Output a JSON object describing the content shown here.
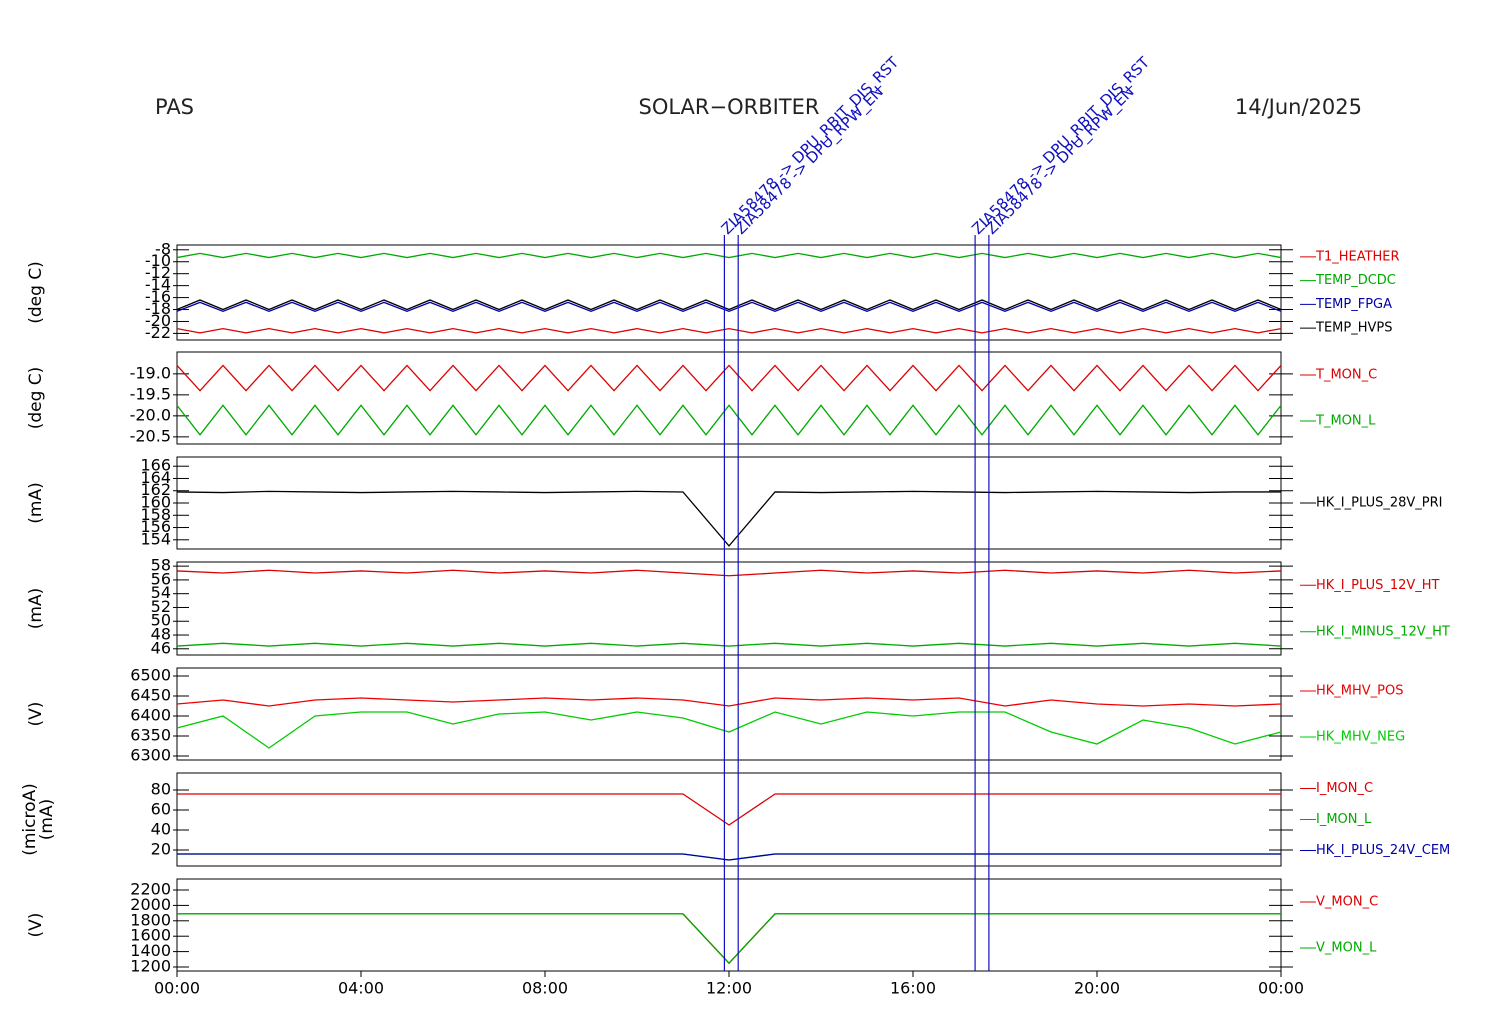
{
  "header": {
    "left": "PAS",
    "center": "SOLAR−ORBITER",
    "right": "14/Jun/2025"
  },
  "events": [
    {
      "x": 11.9,
      "label": "ZIA58478 -> DPU_RBIT_DIS_RST"
    },
    {
      "x": 12.2,
      "label": "ZIA58478 -> DPU_RPW_EN"
    },
    {
      "x": 17.35,
      "label": "ZIA58478 -> DPU_RBIT_DIS_RST"
    },
    {
      "x": 17.65,
      "label": "ZIA58478 -> DPU_RPW_EN"
    }
  ],
  "chart_data": [
    {
      "type": "line",
      "ylabel": "(deg C)",
      "xlim": [
        0,
        24
      ],
      "ylim": [
        -23.1,
        -7.2
      ],
      "yticks": [
        -8,
        -10,
        -12,
        -14,
        -16,
        -18,
        -20,
        -22
      ],
      "x": [
        0,
        0.5,
        1,
        1.5,
        2,
        2.5,
        3,
        3.5,
        4,
        4.5,
        5,
        5.5,
        6,
        6.5,
        7,
        7.5,
        8,
        8.5,
        9,
        9.5,
        10,
        10.5,
        11,
        11.5,
        12,
        12.5,
        13,
        13.5,
        14,
        14.5,
        15,
        15.5,
        16,
        16.5,
        17,
        17.5,
        18,
        18.5,
        19,
        19.5,
        20,
        20.5,
        21,
        21.5,
        22,
        22.5,
        23,
        23.5,
        24
      ],
      "series": [
        {
          "name": "T1_HEATHER",
          "color": "#dd0000",
          "values": [
            -21.2,
            -21.9,
            -21.2,
            -21.9,
            -21.2,
            -21.9,
            -21.2,
            -21.9,
            -21.2,
            -21.9,
            -21.2,
            -21.9,
            -21.2,
            -21.9,
            -21.2,
            -21.9,
            -21.2,
            -21.9,
            -21.2,
            -21.9,
            -21.2,
            -21.9,
            -21.2,
            -21.9,
            -21.2,
            -21.9,
            -21.2,
            -21.9,
            -21.2,
            -21.9,
            -21.2,
            -21.9,
            -21.2,
            -21.9,
            -21.2,
            -21.9,
            -21.2,
            -21.9,
            -21.2,
            -21.9,
            -21.2,
            -21.9,
            -21.2,
            -21.9,
            -21.2,
            -21.9,
            -21.2,
            -21.9,
            -21.2
          ]
        },
        {
          "name": "TEMP_DCDC",
          "color": "#00aa00",
          "values": [
            -9.3,
            -8.6,
            -9.3,
            -8.6,
            -9.3,
            -8.6,
            -9.3,
            -8.6,
            -9.3,
            -8.6,
            -9.3,
            -8.6,
            -9.3,
            -8.6,
            -9.3,
            -8.6,
            -9.3,
            -8.6,
            -9.3,
            -8.6,
            -9.3,
            -8.6,
            -9.3,
            -8.6,
            -9.3,
            -8.6,
            -9.3,
            -8.6,
            -9.3,
            -8.6,
            -9.3,
            -8.6,
            -9.3,
            -8.6,
            -9.3,
            -8.6,
            -9.3,
            -8.6,
            -9.3,
            -8.6,
            -9.3,
            -8.6,
            -9.3,
            -8.6,
            -9.3,
            -8.6,
            -9.3,
            -8.6,
            -9.3
          ]
        },
        {
          "name": "TEMP_FPGA",
          "color": "#0000aa",
          "values": [
            -18.3,
            -16.8,
            -18.3,
            -16.8,
            -18.3,
            -16.8,
            -18.3,
            -16.8,
            -18.3,
            -16.8,
            -18.3,
            -16.8,
            -18.3,
            -16.8,
            -18.3,
            -16.8,
            -18.3,
            -16.8,
            -18.3,
            -16.8,
            -18.3,
            -16.8,
            -18.3,
            -16.8,
            -18.3,
            -16.8,
            -18.3,
            -16.8,
            -18.3,
            -16.8,
            -18.3,
            -16.8,
            -18.3,
            -16.8,
            -18.3,
            -16.8,
            -18.3,
            -16.8,
            -18.3,
            -16.8,
            -18.3,
            -16.8,
            -18.3,
            -16.8,
            -18.3,
            -16.8,
            -18.3,
            -16.8,
            -18.3
          ]
        },
        {
          "name": "TEMP_HVPS",
          "color": "#000000",
          "values": [
            -18.0,
            -16.4,
            -18.0,
            -16.4,
            -18.0,
            -16.4,
            -18.0,
            -16.4,
            -18.0,
            -16.4,
            -18.0,
            -16.4,
            -18.0,
            -16.4,
            -18.0,
            -16.4,
            -18.0,
            -16.4,
            -18.0,
            -16.4,
            -18.0,
            -16.4,
            -18.0,
            -16.4,
            -18.0,
            -16.4,
            -18.0,
            -16.4,
            -18.0,
            -16.4,
            -18.0,
            -16.4,
            -18.0,
            -16.4,
            -18.0,
            -16.4,
            -18.0,
            -16.4,
            -18.0,
            -16.4,
            -18.0,
            -16.4,
            -18.0,
            -16.4,
            -18.0,
            -16.4,
            -18.0,
            -16.4,
            -18.0
          ]
        }
      ]
    },
    {
      "type": "line",
      "ylabel": "(deg C)",
      "xlim": [
        0,
        24
      ],
      "ylim": [
        -20.67,
        -18.48
      ],
      "yticks": [
        {
          "value": -19.0,
          "label": "-19.0"
        },
        {
          "value": -19.5,
          "label": "-19.5"
        },
        {
          "value": -20.0,
          "label": "-20.0"
        },
        {
          "value": -20.5,
          "label": "-20.5"
        }
      ],
      "x": [
        0,
        0.5,
        1,
        1.5,
        2,
        2.5,
        3,
        3.5,
        4,
        4.5,
        5,
        5.5,
        6,
        6.5,
        7,
        7.5,
        8,
        8.5,
        9,
        9.5,
        10,
        10.5,
        11,
        11.5,
        12,
        12.5,
        13,
        13.5,
        14,
        14.5,
        15,
        15.5,
        16,
        16.5,
        17,
        17.5,
        18,
        18.5,
        19,
        19.5,
        20,
        20.5,
        21,
        21.5,
        22,
        22.5,
        23,
        23.5,
        24
      ],
      "series": [
        {
          "name": "T_MON_C",
          "color": "#dd0000",
          "values": [
            -18.8,
            -19.4,
            -18.8,
            -19.4,
            -18.8,
            -19.4,
            -18.8,
            -19.4,
            -18.8,
            -19.4,
            -18.8,
            -19.4,
            -18.8,
            -19.4,
            -18.8,
            -19.4,
            -18.8,
            -19.4,
            -18.8,
            -19.4,
            -18.8,
            -19.4,
            -18.8,
            -19.4,
            -18.8,
            -19.4,
            -18.8,
            -19.4,
            -18.8,
            -19.4,
            -18.8,
            -19.4,
            -18.8,
            -19.4,
            -18.8,
            -19.4,
            -18.8,
            -19.4,
            -18.8,
            -19.4,
            -18.8,
            -19.4,
            -18.8,
            -19.4,
            -18.8,
            -19.4,
            -18.8,
            -19.4,
            -18.8
          ]
        },
        {
          "name": "T_MON_L",
          "color": "#00aa00",
          "values": [
            -19.75,
            -20.45,
            -19.75,
            -20.45,
            -19.75,
            -20.45,
            -19.75,
            -20.45,
            -19.75,
            -20.45,
            -19.75,
            -20.45,
            -19.75,
            -20.45,
            -19.75,
            -20.45,
            -19.75,
            -20.45,
            -19.75,
            -20.45,
            -19.75,
            -20.45,
            -19.75,
            -20.45,
            -19.75,
            -20.45,
            -19.75,
            -20.45,
            -19.75,
            -20.45,
            -19.75,
            -20.45,
            -19.75,
            -20.45,
            -19.75,
            -20.45,
            -19.75,
            -20.45,
            -19.75,
            -20.45,
            -19.75,
            -20.45,
            -19.75,
            -20.45,
            -19.75,
            -20.45,
            -19.75,
            -20.45,
            -19.75
          ]
        }
      ]
    },
    {
      "type": "line",
      "ylabel": "(mA)",
      "xlim": [
        0,
        24
      ],
      "ylim": [
        152.5,
        167.5
      ],
      "yticks": [
        166,
        164,
        162,
        160,
        158,
        156,
        154
      ],
      "x": [
        0,
        1,
        2,
        3,
        4,
        5,
        6,
        7,
        8,
        9,
        10,
        11,
        12,
        13,
        14,
        15,
        16,
        17,
        18,
        19,
        20,
        21,
        22,
        23,
        24
      ],
      "series": [
        {
          "name": "HK_I_PLUS_28V_PRI",
          "color": "#000000",
          "values": [
            161.8,
            161.7,
            161.9,
            161.8,
            161.7,
            161.8,
            161.9,
            161.8,
            161.7,
            161.8,
            161.9,
            161.8,
            153.0,
            161.8,
            161.7,
            161.8,
            161.9,
            161.8,
            161.7,
            161.8,
            161.9,
            161.8,
            161.7,
            161.8,
            161.8
          ]
        }
      ]
    },
    {
      "type": "line",
      "ylabel": "(mA)",
      "xlim": [
        0,
        24
      ],
      "ylim": [
        45.1,
        58.6
      ],
      "yticks": [
        58,
        56,
        54,
        52,
        50,
        48,
        46
      ],
      "x": [
        0,
        1,
        2,
        3,
        4,
        5,
        6,
        7,
        8,
        9,
        10,
        11,
        12,
        13,
        14,
        15,
        16,
        17,
        18,
        19,
        20,
        21,
        22,
        23,
        24
      ],
      "series": [
        {
          "name": "HK_I_PLUS_12V_HT",
          "color": "#dd0000",
          "values": [
            57.3,
            57.0,
            57.4,
            57.0,
            57.3,
            57.0,
            57.4,
            57.0,
            57.3,
            57.0,
            57.4,
            57.0,
            56.6,
            57.0,
            57.4,
            57.0,
            57.3,
            57.0,
            57.4,
            57.0,
            57.3,
            57.0,
            57.4,
            57.0,
            57.3
          ]
        },
        {
          "name": "HK_I_MINUS_12V_HT",
          "color": "#00aa00",
          "values": [
            46.4,
            46.8,
            46.4,
            46.8,
            46.4,
            46.8,
            46.4,
            46.8,
            46.4,
            46.8,
            46.4,
            46.8,
            46.4,
            46.8,
            46.4,
            46.8,
            46.4,
            46.8,
            46.4,
            46.8,
            46.4,
            46.8,
            46.4,
            46.8,
            46.4
          ]
        }
      ]
    },
    {
      "type": "line",
      "ylabel": "(V)",
      "xlim": [
        0,
        24
      ],
      "ylim": [
        6290,
        6520
      ],
      "yticks": [
        6500,
        6450,
        6400,
        6350,
        6300
      ],
      "x": [
        0,
        1,
        2,
        3,
        4,
        5,
        6,
        7,
        8,
        9,
        10,
        11,
        12,
        13,
        14,
        15,
        16,
        17,
        18,
        19,
        20,
        21,
        22,
        23,
        24
      ],
      "series": [
        {
          "name": "HK_MHV_POS",
          "color": "#ee0000",
          "values": [
            6430,
            6440,
            6425,
            6440,
            6445,
            6440,
            6435,
            6440,
            6445,
            6440,
            6445,
            6440,
            6425,
            6445,
            6440,
            6445,
            6440,
            6445,
            6425,
            6440,
            6430,
            6425,
            6430,
            6425,
            6430
          ]
        },
        {
          "name": "HK_MHV_NEG",
          "color": "#00cc00",
          "values": [
            6370,
            6400,
            6320,
            6400,
            6410,
            6410,
            6380,
            6405,
            6410,
            6390,
            6410,
            6395,
            6360,
            6410,
            6380,
            6410,
            6400,
            6410,
            6410,
            6360,
            6330,
            6390,
            6370,
            6330,
            6360
          ]
        }
      ]
    },
    {
      "type": "line",
      "ylabel": "(microA)",
      "ylabel2": "(mA)",
      "xlim": [
        0,
        24
      ],
      "ylim": [
        4,
        97
      ],
      "yticks": [
        80,
        60,
        40,
        20
      ],
      "x": [
        0,
        1,
        2,
        3,
        4,
        5,
        6,
        7,
        8,
        9,
        10,
        11,
        12,
        13,
        14,
        15,
        16,
        17,
        18,
        19,
        20,
        21,
        22,
        23,
        24
      ],
      "series": [
        {
          "name": "I_MON_C",
          "color": "#dd0000",
          "values": [
            76,
            76,
            76,
            76,
            76,
            76,
            76,
            76,
            76,
            76,
            76,
            76,
            45,
            76,
            76,
            76,
            76,
            76,
            76,
            76,
            76,
            76,
            76,
            76,
            76
          ]
        },
        {
          "name": "I_MON_L",
          "color": "#00aa00",
          "values": [
            16,
            16,
            16,
            16,
            16,
            16,
            16,
            16,
            16,
            16,
            16,
            16,
            10,
            16,
            16,
            16,
            16,
            16,
            16,
            16,
            16,
            16,
            16,
            16,
            16
          ]
        },
        {
          "name": "HK_I_PLUS_24V_CEM",
          "color": "#0000aa",
          "values": [
            16,
            16,
            16,
            16,
            16,
            16,
            16,
            16,
            16,
            16,
            16,
            16,
            10,
            16,
            16,
            16,
            16,
            16,
            16,
            16,
            16,
            16,
            16,
            16,
            16
          ]
        }
      ]
    },
    {
      "type": "line",
      "ylabel": "(V)",
      "xlim": [
        0,
        24
      ],
      "ylim": [
        1148,
        2343
      ],
      "yticks": [
        2200,
        2000,
        1800,
        1600,
        1400,
        1200
      ],
      "xticks": [
        {
          "value": 0,
          "label": "00:00"
        },
        {
          "value": 4,
          "label": "04:00"
        },
        {
          "value": 8,
          "label": "08:00"
        },
        {
          "value": 12,
          "label": "12:00"
        },
        {
          "value": 16,
          "label": "16:00"
        },
        {
          "value": 20,
          "label": "20:00"
        },
        {
          "value": 24,
          "label": "00:00"
        }
      ],
      "x": [
        0,
        1,
        2,
        3,
        4,
        5,
        6,
        7,
        8,
        9,
        10,
        11,
        12,
        13,
        14,
        15,
        16,
        17,
        18,
        19,
        20,
        21,
        22,
        23,
        24
      ],
      "series": [
        {
          "name": "V_MON_C",
          "color": "#dd0000",
          "values": [
            1890,
            1890,
            1890,
            1890,
            1890,
            1890,
            1890,
            1890,
            1890,
            1890,
            1890,
            1890,
            1250,
            1890,
            1890,
            1890,
            1890,
            1890,
            1890,
            1890,
            1890,
            1890,
            1890,
            1890,
            1890
          ]
        },
        {
          "name": "V_MON_L",
          "color": "#00aa00",
          "values": [
            1890,
            1890,
            1890,
            1890,
            1890,
            1890,
            1890,
            1890,
            1890,
            1890,
            1890,
            1890,
            1250,
            1890,
            1890,
            1890,
            1890,
            1890,
            1890,
            1890,
            1890,
            1890,
            1890,
            1890,
            1890
          ]
        }
      ]
    }
  ]
}
